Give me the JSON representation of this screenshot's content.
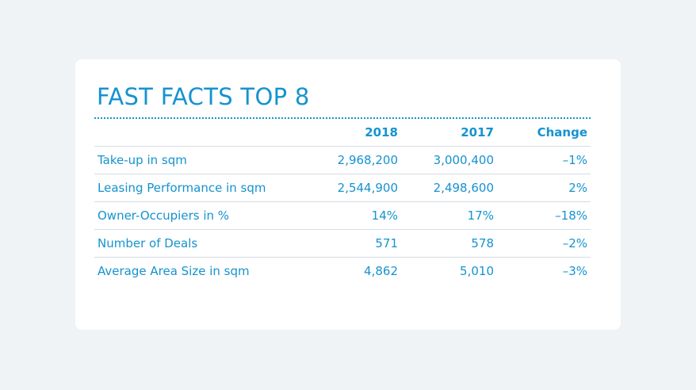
{
  "title": "FAST FACTS TOP 8",
  "columns": [
    "",
    "2018",
    "2017",
    "Change"
  ],
  "rows": [
    {
      "label": "Take-up in sqm",
      "y2018": "2,968,200",
      "y2017": "3,000,400",
      "change": "–1%"
    },
    {
      "label": "Leasing Performance in sqm",
      "y2018": "2,544,900",
      "y2017": "2,498,600",
      "change": "2%"
    },
    {
      "label": "Owner-Occupiers in %",
      "y2018": "14%",
      "y2017": "17%",
      "change": "–18%"
    },
    {
      "label": "Number of Deals",
      "y2018": "571",
      "y2017": "578",
      "change": "–2%"
    },
    {
      "label": "Average Area Size in sqm",
      "y2018": "4,862",
      "y2017": "5,010",
      "change": "–3%"
    }
  ],
  "colors": {
    "accent": "#1593cf",
    "background": "#eff3f6",
    "card": "#ffffff",
    "divider": "#d6dde3"
  }
}
